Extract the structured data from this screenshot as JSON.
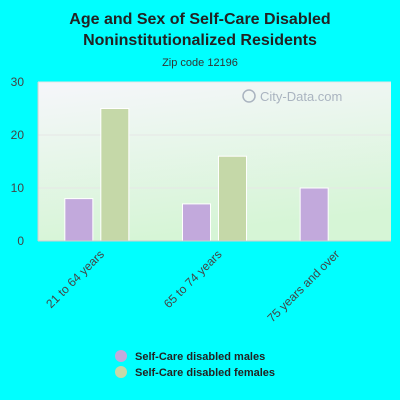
{
  "chart_data": {
    "type": "bar",
    "title_lines": [
      "Age and Sex of Self-Care Disabled",
      "Noninstitutionalized Residents"
    ],
    "subtitle": "Zip code 12196",
    "categories": [
      "21 to 64 years",
      "65 to 74 years",
      "75 years and over"
    ],
    "series": [
      {
        "name": "Self-Care disabled males",
        "values": [
          8,
          7,
          10
        ],
        "color": "#c2a9dc"
      },
      {
        "name": "Self-Care disabled females",
        "values": [
          25,
          16,
          0
        ],
        "color": "#c5d8a8"
      }
    ],
    "yticks": [
      0,
      10,
      20,
      30
    ],
    "ylim": [
      0,
      30
    ],
    "grid": true,
    "legend_position": "bottom",
    "watermark": "City-Data.com",
    "background": "#00ffff"
  }
}
